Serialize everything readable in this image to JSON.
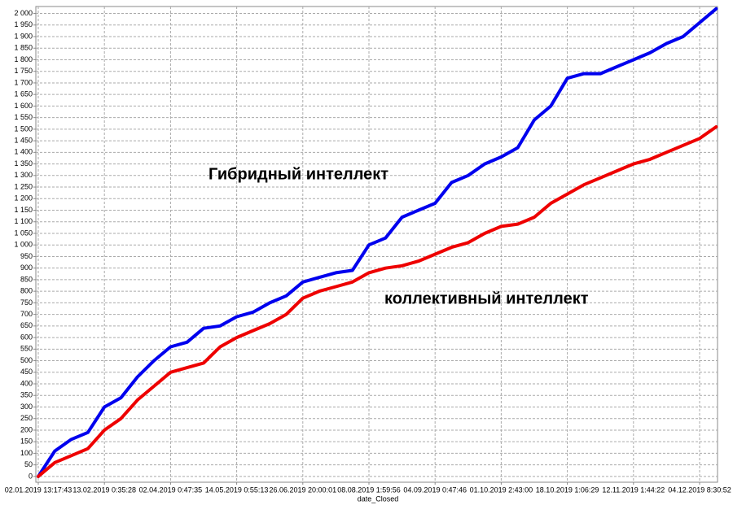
{
  "chart_data": {
    "type": "line",
    "x_label": "date_Closed",
    "annotations": [
      "Гибридный интеллект",
      "коллективный интеллект"
    ],
    "categories": [
      "02.01.2019 13:17:43",
      null,
      null,
      null,
      "13.02.2019 0:35:28",
      null,
      null,
      null,
      "02.04.2019 0:47:35",
      null,
      null,
      null,
      "14.05.2019 0:55:13",
      null,
      null,
      null,
      "26.06.2019 20:00:01",
      null,
      null,
      null,
      "08.08.2019 1:59:56",
      null,
      null,
      null,
      "04.09.2019 0:47:46",
      null,
      null,
      null,
      "01.10.2019 2:43:00",
      null,
      null,
      null,
      "18.10.2019 1:06:29",
      null,
      null,
      null,
      "12.11.2019 1:44:22",
      null,
      null,
      null,
      "04.12.2019 8:30:52",
      null
    ],
    "series": [
      {
        "name": "Гибридный интеллект",
        "color": "#0000ee",
        "values": [
          0,
          110,
          160,
          190,
          300,
          340,
          430,
          500,
          560,
          580,
          640,
          650,
          690,
          710,
          750,
          780,
          840,
          860,
          880,
          890,
          1000,
          1030,
          1120,
          1150,
          1180,
          1270,
          1300,
          1350,
          1380,
          1420,
          1540,
          1600,
          1720,
          1740,
          1740,
          1770,
          1800,
          1830,
          1870,
          1900,
          1960,
          2020
        ]
      },
      {
        "name": "коллективный интеллект",
        "color": "#ee0000",
        "values": [
          0,
          60,
          90,
          120,
          200,
          250,
          330,
          390,
          450,
          470,
          490,
          560,
          600,
          630,
          660,
          700,
          770,
          800,
          820,
          840,
          880,
          900,
          910,
          930,
          960,
          990,
          1010,
          1050,
          1080,
          1090,
          1120,
          1180,
          1220,
          1260,
          1290,
          1320,
          1350,
          1370,
          1400,
          1430,
          1460,
          1510
        ]
      }
    ],
    "ylim": [
      -25,
      2030
    ],
    "yticks": [
      0,
      50,
      100,
      150,
      200,
      250,
      300,
      350,
      400,
      450,
      500,
      550,
      600,
      650,
      700,
      750,
      800,
      850,
      900,
      950,
      {
        "value": 1000,
        "label": "1 000"
      },
      {
        "value": 1050,
        "label": "1 050"
      },
      {
        "value": 1100,
        "label": "1 100"
      },
      {
        "value": 1150,
        "label": "1 150"
      },
      {
        "value": 1200,
        "label": "1 200"
      },
      {
        "value": 1250,
        "label": "1 250"
      },
      {
        "value": 1300,
        "label": "1 300"
      },
      {
        "value": 1350,
        "label": "1 350"
      },
      {
        "value": 1400,
        "label": "1 400"
      },
      {
        "value": 1450,
        "label": "1 450"
      },
      {
        "value": 1500,
        "label": "1 500"
      },
      {
        "value": 1550,
        "label": "1 550"
      },
      {
        "value": 1600,
        "label": "1 600"
      },
      {
        "value": 1650,
        "label": "1 650"
      },
      {
        "value": 1700,
        "label": "1 700"
      },
      {
        "value": 1750,
        "label": "1 750"
      },
      {
        "value": 1800,
        "label": "1 800"
      },
      {
        "value": 1850,
        "label": "1 850"
      },
      {
        "value": 1900,
        "label": "1 900"
      },
      {
        "value": 1950,
        "label": "1 950"
      },
      {
        "value": 2000,
        "label": "2 000"
      }
    ],
    "grid": true
  }
}
